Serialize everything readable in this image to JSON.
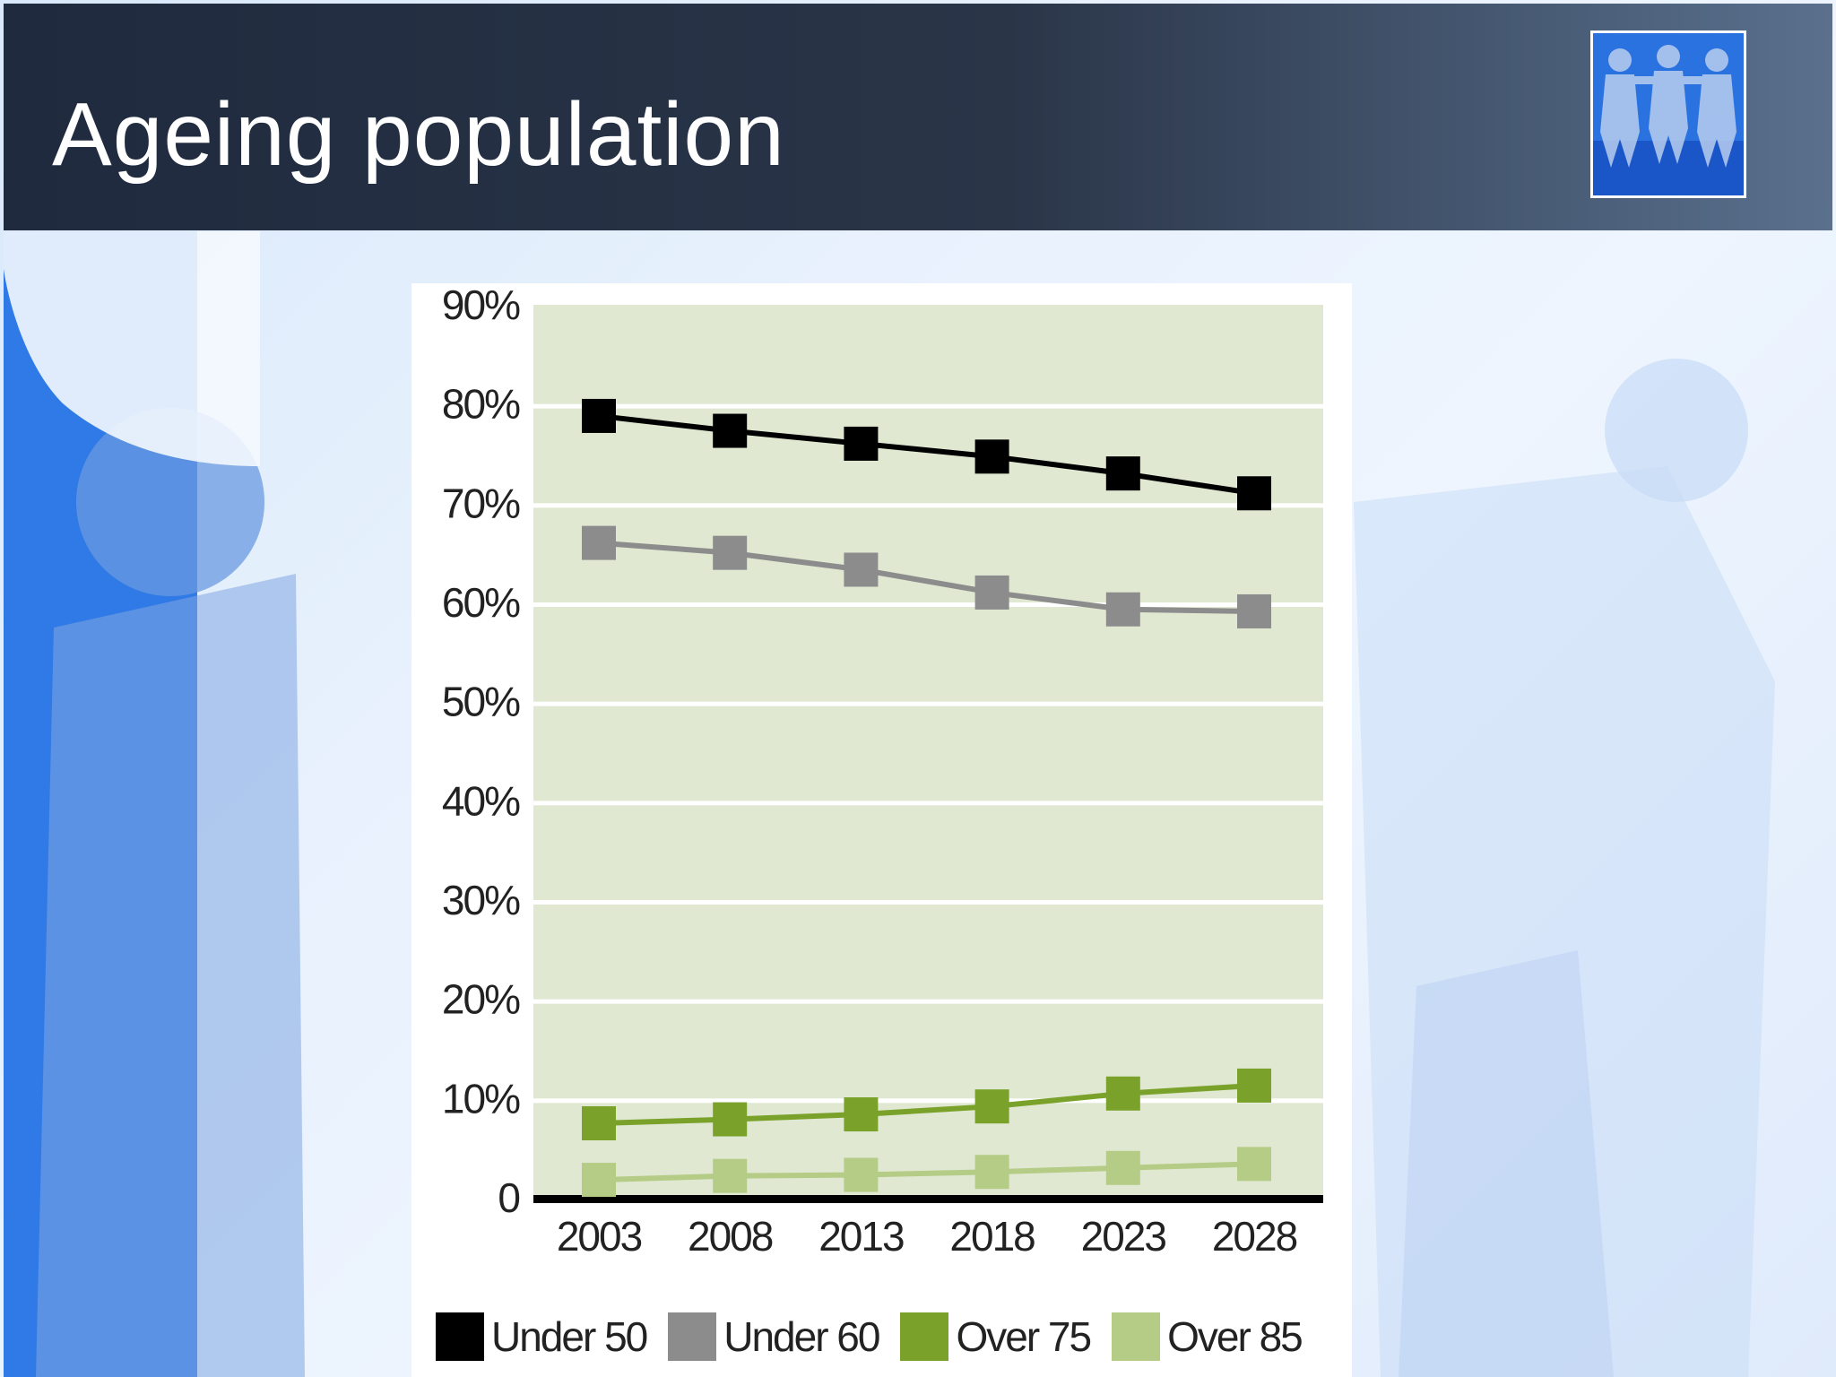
{
  "slide": {
    "title": "Ageing population",
    "logo_icon": "paper-people-chain-icon"
  },
  "colors": {
    "header_background": "#222c3f",
    "plot_band": "#e0e8d2",
    "under_50": "#000000",
    "under_60": "#8c8c8c",
    "over_75": "#7aa22a",
    "over_85": "#b5cc86"
  },
  "chart_data": {
    "type": "line",
    "title": "",
    "xlabel": "",
    "ylabel": "",
    "x": [
      "2003",
      "2008",
      "2013",
      "2018",
      "2023",
      "2028"
    ],
    "ylim": [
      0,
      90
    ],
    "yticks": [
      {
        "value": 0,
        "label": "0"
      },
      {
        "value": 10,
        "label": "10%"
      },
      {
        "value": 20,
        "label": "20%"
      },
      {
        "value": 30,
        "label": "30%"
      },
      {
        "value": 40,
        "label": "40%"
      },
      {
        "value": 50,
        "label": "50%"
      },
      {
        "value": 60,
        "label": "60%"
      },
      {
        "value": 70,
        "label": "70%"
      },
      {
        "value": 80,
        "label": "80%"
      },
      {
        "value": 90,
        "label": "90%"
      }
    ],
    "grid": true,
    "legend_position": "bottom",
    "series": [
      {
        "name": "Under 50",
        "color": "#000000",
        "values": [
          78.8,
          77.3,
          76.0,
          74.7,
          73.0,
          71.0
        ]
      },
      {
        "name": "Under 60",
        "color": "#8c8c8c",
        "values": [
          66.0,
          65.0,
          63.3,
          61.0,
          59.3,
          59.1
        ]
      },
      {
        "name": "Over 75",
        "color": "#7aa22a",
        "values": [
          7.5,
          7.9,
          8.4,
          9.2,
          10.5,
          11.3
        ]
      },
      {
        "name": "Over 85",
        "color": "#b5cc86",
        "values": [
          1.8,
          2.2,
          2.3,
          2.6,
          3.0,
          3.4
        ]
      }
    ]
  }
}
